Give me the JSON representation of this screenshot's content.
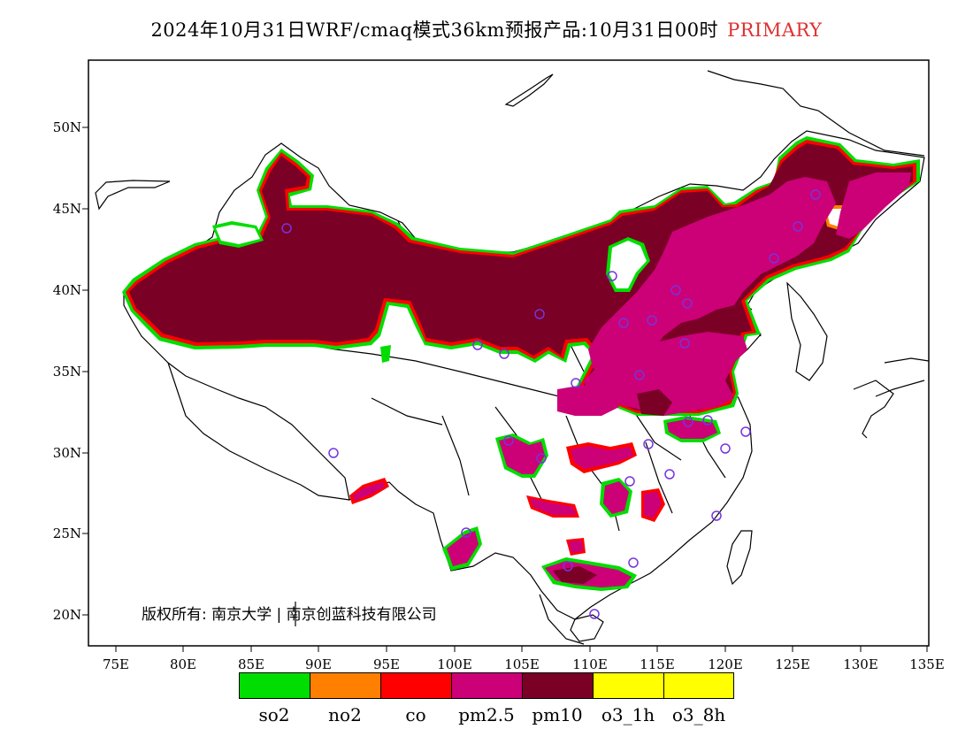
{
  "title": {
    "text": "2024年10月31日WRF/cmaq模式36km预报产品:10月31日00时",
    "tag": "PRIMARY",
    "tag_color": "#e03030"
  },
  "axes": {
    "x_ticks": [
      "75E",
      "80E",
      "85E",
      "90E",
      "95E",
      "100E",
      "105E",
      "110E",
      "115E",
      "120E",
      "125E",
      "130E",
      "135E"
    ],
    "y_ticks": [
      "50N",
      "45N",
      "40N",
      "35N",
      "30N",
      "25N",
      "20N"
    ],
    "lon_range": [
      73,
      135
    ],
    "lat_range": [
      18,
      54
    ]
  },
  "legend": {
    "items": [
      {
        "label": "so2",
        "color": "#00dd00"
      },
      {
        "label": "no2",
        "color": "#ff8000"
      },
      {
        "label": "co",
        "color": "#ff0000"
      },
      {
        "label": "pm2.5",
        "color": "#cc0077"
      },
      {
        "label": "pm10",
        "color": "#7a0026"
      },
      {
        "label": "o3_1h",
        "color": "#ffff00"
      },
      {
        "label": "o3_8h",
        "color": "#ffff00"
      }
    ]
  },
  "copyright": "版权所有: 南京大学 | 南京创蓝科技有限公司",
  "colors": {
    "pm10": "#7a0026",
    "pm25": "#cc0077",
    "edge_red": "#ff0000",
    "edge_green": "#00dd00",
    "station_marker": "#7733dd"
  }
}
